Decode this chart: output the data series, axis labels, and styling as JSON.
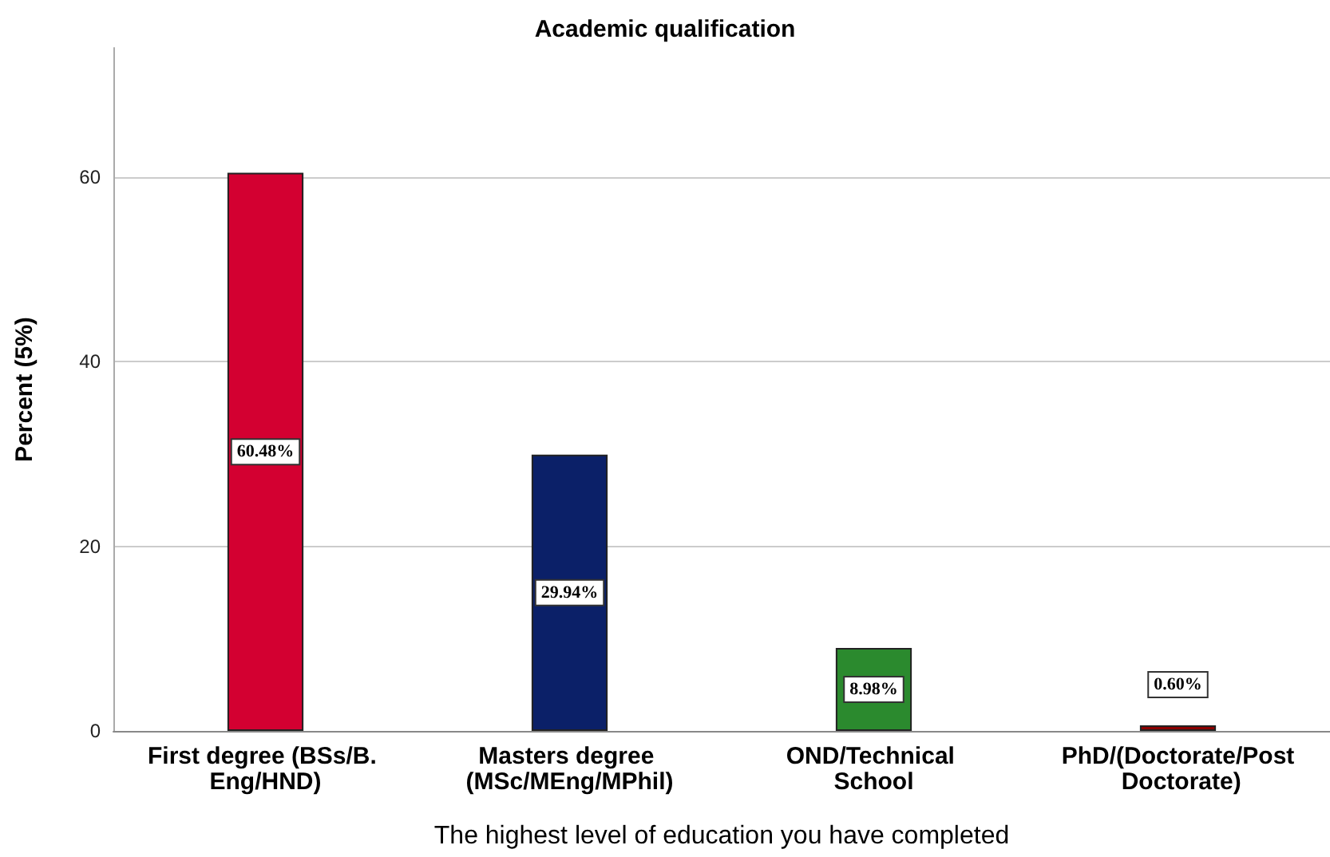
{
  "chart_data": {
    "type": "bar",
    "title": "Academic qualification",
    "xlabel": "The highest level of education you have completed",
    "ylabel": "Percent (5%)",
    "categories": [
      "First degree (BSs/B. Eng/HND)",
      "Masters degree (MSc/MEng/MPhil)",
      "OND/Technical School",
      "PhD/(Doctorate/Post Doctorate)"
    ],
    "values": [
      60.48,
      29.94,
      8.98,
      0.6
    ],
    "colors": [
      "#d30031",
      "#0b2068",
      "#2b8a2e",
      "#8b0000"
    ],
    "value_labels": [
      "60.48%",
      "29.94%",
      "8.98%",
      "0.60%"
    ],
    "ylim": [
      0,
      74
    ],
    "yticks": [
      0,
      20,
      40,
      60
    ],
    "grid": "y"
  }
}
